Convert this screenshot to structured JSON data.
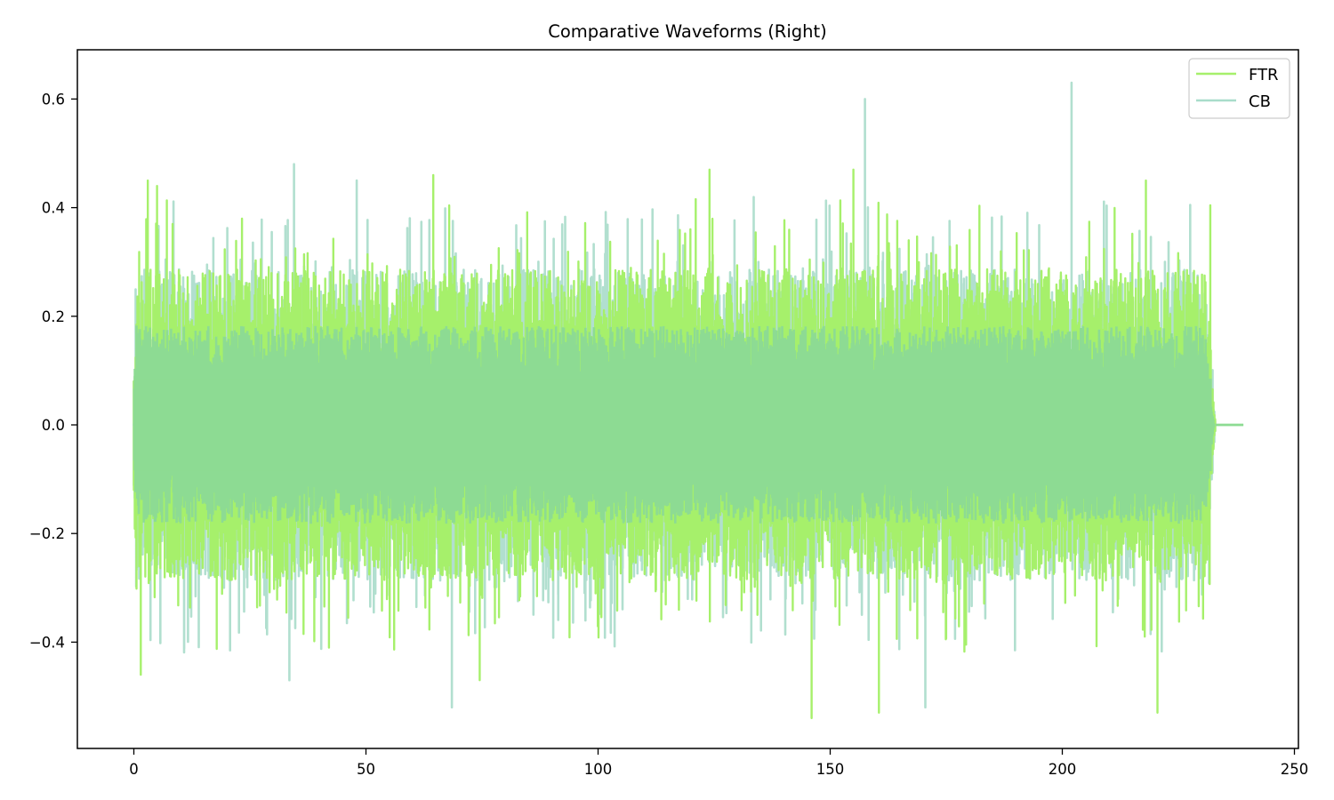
{
  "chart_data": {
    "type": "line",
    "title": "Comparative Waveforms (Right)",
    "xlabel": "",
    "ylabel": "",
    "xlim": [
      -12,
      250
    ],
    "ylim": [
      -0.58,
      0.69
    ],
    "xticks": [
      0,
      50,
      100,
      150,
      200,
      250
    ],
    "xtick_labels": [
      "0",
      "50",
      "100",
      "150",
      "200",
      "250"
    ],
    "yticks": [
      -0.4,
      -0.2,
      0.0,
      0.2,
      0.4,
      0.6
    ],
    "ytick_labels": [
      "−0.4",
      "−0.2",
      "0.0",
      "0.2",
      "0.4",
      "0.6"
    ],
    "grid": false,
    "legend_position": "upper right",
    "series": [
      {
        "name": "FTR",
        "color": "#a6f06b",
        "alpha": 1.0,
        "x_range": [
          0,
          239
        ],
        "signal_end": 233,
        "typical_envelope": [
          -0.22,
          0.22
        ],
        "max_peak": 0.47,
        "min_peak": -0.54,
        "notable_peaks": [
          {
            "x": 3,
            "y": 0.45
          },
          {
            "x": 5,
            "y": 0.44
          },
          {
            "x": 1.5,
            "y": -0.46
          },
          {
            "x": 64.5,
            "y": 0.46
          },
          {
            "x": 74.5,
            "y": -0.47
          },
          {
            "x": 124,
            "y": 0.47
          },
          {
            "x": 146,
            "y": -0.54
          },
          {
            "x": 155,
            "y": 0.47
          },
          {
            "x": 160.5,
            "y": -0.53
          },
          {
            "x": 218,
            "y": 0.45
          },
          {
            "x": 220.5,
            "y": -0.53
          }
        ]
      },
      {
        "name": "CB",
        "color": "#a8dcca",
        "alpha": 0.9,
        "x_range": [
          0,
          239
        ],
        "signal_end": 233,
        "typical_envelope": [
          -0.22,
          0.22
        ],
        "max_peak": 0.63,
        "min_peak": -0.52,
        "notable_peaks": [
          {
            "x": 34.5,
            "y": 0.48
          },
          {
            "x": 48,
            "y": 0.45
          },
          {
            "x": 68.5,
            "y": -0.52
          },
          {
            "x": 157.5,
            "y": 0.6
          },
          {
            "x": 202,
            "y": 0.63
          },
          {
            "x": 170.5,
            "y": -0.52
          },
          {
            "x": 33.5,
            "y": -0.47
          }
        ]
      }
    ],
    "overlap_color": "#8ddb93"
  },
  "legend": {
    "items": [
      {
        "label": "FTR",
        "color": "#a6f06b"
      },
      {
        "label": "CB",
        "color": "#a8dcca"
      }
    ]
  }
}
